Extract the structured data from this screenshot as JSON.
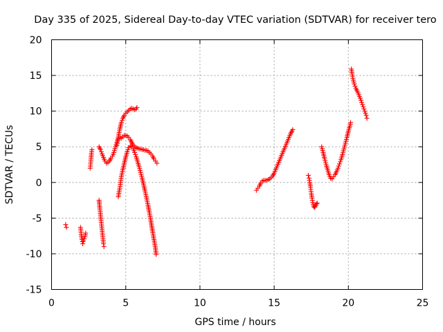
{
  "chart_data": {
    "type": "scatter",
    "title": "Day 335 of 2025, Sidereal Day-to-day VTEC variation (SDTVAR) for receiver tero",
    "xlabel": "GPS time / hours",
    "ylabel": "SDTVAR / TECUs",
    "xlim": [
      0,
      25
    ],
    "ylim": [
      -15,
      20
    ],
    "xticks": [
      0,
      5,
      10,
      15,
      20,
      25
    ],
    "yticks": [
      -15,
      -10,
      -5,
      0,
      5,
      10,
      15,
      20
    ],
    "grid": true,
    "marker": "plus",
    "color": "#ff0000",
    "series": [
      {
        "segments": [
          [
            [
              0.95,
              -5.9
            ],
            [
              1.0,
              -6.3
            ]
          ],
          [
            [
              1.95,
              -6.3
            ],
            [
              2.0,
              -7.3
            ],
            [
              2.05,
              -8.0
            ],
            [
              2.1,
              -8.6
            ],
            [
              2.15,
              -8.2
            ],
            [
              2.2,
              -7.9
            ],
            [
              2.25,
              -7.6
            ],
            [
              2.3,
              -7.1
            ]
          ],
          [
            [
              2.6,
              2.0
            ],
            [
              2.63,
              2.6
            ],
            [
              2.66,
              3.4
            ],
            [
              2.69,
              4.1
            ],
            [
              2.72,
              4.6
            ]
          ],
          [
            [
              3.2,
              -2.5
            ],
            [
              3.25,
              -3.6
            ],
            [
              3.3,
              -4.6
            ],
            [
              3.35,
              -5.6
            ],
            [
              3.4,
              -6.6
            ],
            [
              3.45,
              -7.6
            ],
            [
              3.5,
              -8.6
            ],
            [
              3.53,
              -9.0
            ]
          ],
          [
            [
              3.2,
              5.0
            ],
            [
              3.3,
              4.6
            ],
            [
              3.4,
              4.0
            ],
            [
              3.5,
              3.5
            ],
            [
              3.6,
              3.0
            ],
            [
              3.7,
              2.7
            ],
            [
              3.8,
              2.8
            ],
            [
              3.9,
              3.0
            ],
            [
              4.0,
              3.4
            ],
            [
              4.1,
              3.7
            ],
            [
              4.2,
              4.2
            ],
            [
              4.3,
              5.0
            ],
            [
              4.4,
              5.6
            ],
            [
              4.5,
              6.1
            ],
            [
              4.6,
              6.3
            ],
            [
              4.7,
              6.2
            ],
            [
              4.8,
              6.4
            ],
            [
              4.9,
              6.6
            ],
            [
              5.0,
              6.6
            ],
            [
              5.1,
              6.5
            ],
            [
              5.2,
              6.3
            ],
            [
              5.3,
              6.0
            ],
            [
              5.4,
              5.6
            ],
            [
              5.5,
              5.2
            ],
            [
              5.6,
              5.0
            ],
            [
              5.7,
              4.9
            ],
            [
              5.8,
              4.8
            ],
            [
              5.9,
              4.7
            ],
            [
              6.0,
              4.7
            ],
            [
              6.1,
              4.6
            ],
            [
              6.2,
              4.6
            ],
            [
              6.3,
              4.5
            ],
            [
              6.4,
              4.5
            ],
            [
              6.5,
              4.4
            ],
            [
              6.6,
              4.2
            ],
            [
              6.7,
              4.0
            ],
            [
              6.8,
              3.7
            ],
            [
              6.9,
              3.3
            ],
            [
              7.0,
              3.0
            ],
            [
              7.1,
              2.7
            ]
          ],
          [
            [
              4.5,
              -2.0
            ],
            [
              4.55,
              -1.3
            ],
            [
              4.6,
              -0.8
            ],
            [
              4.65,
              0.0
            ],
            [
              4.7,
              0.8
            ],
            [
              4.8,
              1.8
            ],
            [
              4.9,
              2.7
            ],
            [
              5.0,
              3.6
            ],
            [
              5.1,
              4.3
            ],
            [
              5.2,
              4.9
            ],
            [
              5.3,
              5.1
            ],
            [
              5.4,
              5.0
            ],
            [
              5.5,
              4.7
            ],
            [
              5.6,
              4.2
            ],
            [
              5.7,
              3.6
            ],
            [
              5.8,
              2.9
            ],
            [
              5.9,
              2.2
            ],
            [
              6.0,
              1.4
            ],
            [
              6.1,
              0.6
            ],
            [
              6.2,
              -0.3
            ],
            [
              6.3,
              -1.2
            ],
            [
              6.4,
              -2.2
            ],
            [
              6.5,
              -3.2
            ],
            [
              6.6,
              -4.3
            ],
            [
              6.7,
              -5.5
            ],
            [
              6.8,
              -6.8
            ],
            [
              6.9,
              -8.0
            ],
            [
              7.0,
              -9.2
            ],
            [
              7.05,
              -10.1
            ]
          ],
          [
            [
              4.4,
              5.2
            ],
            [
              4.45,
              5.8
            ],
            [
              4.5,
              6.5
            ],
            [
              4.6,
              7.5
            ],
            [
              4.7,
              8.4
            ],
            [
              4.8,
              9.0
            ],
            [
              4.9,
              9.4
            ],
            [
              5.0,
              9.7
            ],
            [
              5.1,
              9.9
            ],
            [
              5.2,
              10.1
            ],
            [
              5.3,
              10.3
            ],
            [
              5.4,
              10.4
            ],
            [
              5.5,
              10.3
            ],
            [
              5.6,
              10.2
            ],
            [
              5.7,
              10.3
            ],
            [
              5.75,
              10.5
            ]
          ],
          [
            [
              13.8,
              -1.1
            ],
            [
              13.9,
              -0.8
            ],
            [
              14.0,
              -0.5
            ],
            [
              14.1,
              -0.1
            ],
            [
              14.2,
              0.2
            ],
            [
              14.3,
              0.3
            ],
            [
              14.4,
              0.3
            ],
            [
              14.5,
              0.3
            ],
            [
              14.6,
              0.4
            ],
            [
              14.7,
              0.5
            ],
            [
              14.8,
              0.7
            ],
            [
              14.9,
              0.9
            ],
            [
              15.0,
              1.3
            ],
            [
              15.1,
              1.8
            ],
            [
              15.2,
              2.3
            ],
            [
              15.3,
              2.8
            ],
            [
              15.4,
              3.3
            ],
            [
              15.5,
              3.8
            ],
            [
              15.6,
              4.3
            ],
            [
              15.7,
              4.8
            ],
            [
              15.8,
              5.3
            ],
            [
              15.9,
              5.8
            ],
            [
              16.0,
              6.3
            ],
            [
              16.1,
              6.8
            ],
            [
              16.2,
              7.2
            ],
            [
              16.25,
              7.4
            ]
          ],
          [
            [
              17.3,
              1.0
            ],
            [
              17.35,
              0.6
            ],
            [
              17.4,
              0.0
            ],
            [
              17.45,
              -0.7
            ],
            [
              17.5,
              -1.5
            ],
            [
              17.55,
              -2.2
            ],
            [
              17.6,
              -2.8
            ],
            [
              17.65,
              -3.3
            ],
            [
              17.7,
              -3.5
            ],
            [
              17.75,
              -3.4
            ],
            [
              17.8,
              -3.2
            ],
            [
              17.85,
              -3.0
            ],
            [
              17.9,
              -2.9
            ]
          ],
          [
            [
              18.2,
              5.0
            ],
            [
              18.3,
              4.2
            ],
            [
              18.4,
              3.3
            ],
            [
              18.5,
              2.5
            ],
            [
              18.6,
              1.8
            ],
            [
              18.7,
              1.1
            ],
            [
              18.8,
              0.6
            ],
            [
              18.9,
              0.5
            ],
            [
              19.0,
              0.8
            ],
            [
              19.1,
              1.1
            ],
            [
              19.2,
              1.5
            ],
            [
              19.3,
              2.0
            ],
            [
              19.4,
              2.6
            ],
            [
              19.5,
              3.2
            ],
            [
              19.6,
              3.9
            ],
            [
              19.7,
              4.7
            ],
            [
              19.8,
              5.5
            ],
            [
              19.9,
              6.3
            ],
            [
              20.0,
              7.2
            ],
            [
              20.1,
              7.9
            ],
            [
              20.15,
              8.4
            ]
          ],
          [
            [
              20.2,
              15.9
            ],
            [
              20.25,
              15.2
            ],
            [
              20.3,
              14.6
            ],
            [
              20.4,
              13.8
            ],
            [
              20.5,
              13.2
            ],
            [
              20.6,
              12.8
            ],
            [
              20.7,
              12.3
            ],
            [
              20.8,
              11.8
            ],
            [
              20.9,
              11.2
            ],
            [
              21.0,
              10.6
            ],
            [
              21.1,
              10.0
            ],
            [
              21.2,
              9.4
            ],
            [
              21.25,
              9.0
            ]
          ]
        ]
      }
    ]
  }
}
